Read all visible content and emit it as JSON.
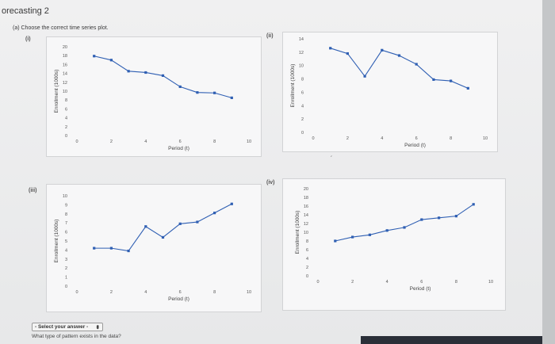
{
  "page": {
    "title": "orecasting 2",
    "question": "(a) Choose the correct time series plot.",
    "select_label": "- Select your answer -",
    "select_arrow": "⬍",
    "prompt": "What type of pattern exists in the data?"
  },
  "panel_labels": [
    "(i)",
    "(ii)",
    "(iii)",
    "(iv)"
  ],
  "chart_data": [
    {
      "type": "line",
      "xlabel": "Period (t)",
      "ylabel": "Enrollment (1000s)",
      "x_ticks": [
        "0",
        "2",
        "4",
        "6",
        "8",
        "10"
      ],
      "y_ticks": [
        "0",
        "2",
        "4",
        "6",
        "8",
        "10",
        "12",
        "14",
        "16",
        "18",
        "20"
      ],
      "xlim": [
        0,
        10
      ],
      "ylim": [
        0,
        20
      ],
      "x": [
        1,
        2,
        3,
        4,
        5,
        6,
        7,
        8,
        9
      ],
      "values": [
        17.9,
        17.0,
        14.5,
        14.2,
        13.5,
        11.0,
        9.7,
        9.6,
        8.5
      ],
      "color": "#2f5fb3"
    },
    {
      "type": "line",
      "xlabel": "Period (t)",
      "ylabel": "Enrollment (1000s)",
      "x_ticks": [
        "0",
        "2",
        "4",
        "6",
        "8",
        "10"
      ],
      "y_ticks": [
        "0",
        "2",
        "4",
        "6",
        "8",
        "10",
        "12",
        "14"
      ],
      "xlim": [
        0,
        10
      ],
      "ylim": [
        0,
        14
      ],
      "x": [
        1,
        2,
        3,
        4,
        5,
        6,
        7,
        8,
        9
      ],
      "values": [
        12.6,
        11.8,
        8.4,
        12.3,
        11.5,
        10.2,
        7.9,
        7.7,
        6.6
      ],
      "color": "#2f5fb3"
    },
    {
      "type": "line",
      "xlabel": "Period (t)",
      "ylabel": "Enrollment (1000s)",
      "x_ticks": [
        "0",
        "2",
        "4",
        "6",
        "8",
        "10"
      ],
      "y_ticks": [
        "0",
        "1",
        "2",
        "3",
        "4",
        "5",
        "6",
        "7",
        "8",
        "9",
        "10"
      ],
      "xlim": [
        0,
        10
      ],
      "ylim": [
        0,
        10
      ],
      "x": [
        1,
        2,
        3,
        4,
        5,
        6,
        7,
        8,
        9
      ],
      "values": [
        4.2,
        4.2,
        3.9,
        6.6,
        5.4,
        6.9,
        7.1,
        8.1,
        9.1
      ],
      "color": "#2f5fb3"
    },
    {
      "type": "line",
      "xlabel": "Period (t)",
      "ylabel": "Enrollment (1000s)",
      "x_ticks": [
        "0",
        "2",
        "4",
        "6",
        "8",
        "10"
      ],
      "y_ticks": [
        "0",
        "2",
        "4",
        "6",
        "8",
        "10",
        "12",
        "14",
        "16",
        "18",
        "20"
      ],
      "xlim": [
        0,
        10
      ],
      "ylim": [
        0,
        20
      ],
      "x": [
        1,
        2,
        3,
        4,
        5,
        6,
        7,
        8,
        9
      ],
      "values": [
        8.0,
        8.9,
        9.4,
        10.4,
        11.1,
        12.9,
        13.3,
        13.7,
        16.4
      ],
      "color": "#2f5fb3"
    }
  ]
}
